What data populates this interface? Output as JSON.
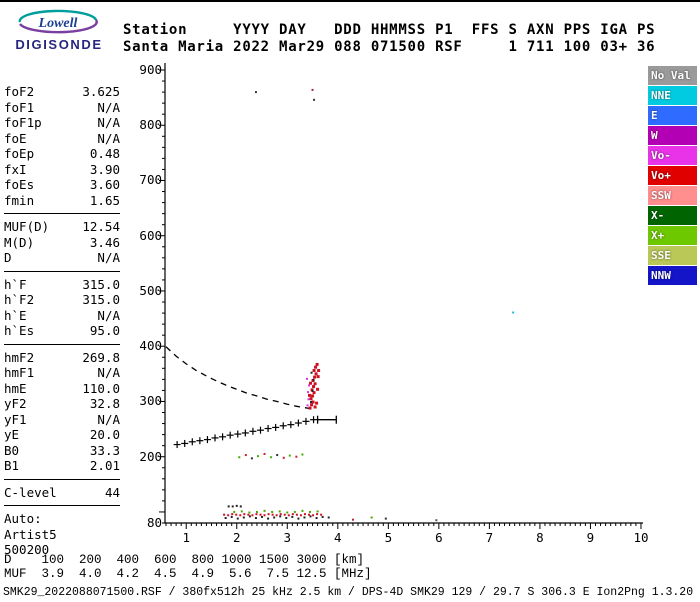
{
  "logo": {
    "name": "Lowell",
    "brand": "DIGISONDE"
  },
  "header": {
    "line1": "Station     YYYY DAY   DDD HHMMSS P1  FFS S AXN PPS IGA PS",
    "line2": "Santa Maria 2022 Mar29 088 071500 RSF     1 711 100 03+ 36"
  },
  "params": {
    "groups": [
      {
        "rows": [
          [
            "foF2",
            "3.625"
          ],
          [
            "foF1",
            "N/A"
          ],
          [
            "foF1p",
            "N/A"
          ],
          [
            "foE",
            "N/A"
          ],
          [
            "foEp",
            "0.48"
          ],
          [
            "fxI",
            "3.90"
          ],
          [
            "foEs",
            "3.60"
          ],
          [
            "fmin",
            "1.65"
          ]
        ]
      },
      {
        "rows": [
          [
            "MUF(D)",
            "12.54"
          ],
          [
            "M(D)",
            "3.46"
          ],
          [
            "D",
            "N/A"
          ]
        ]
      },
      {
        "rows": [
          [
            "h`F",
            "315.0"
          ],
          [
            "h`F2",
            "315.0"
          ],
          [
            "h`E",
            "N/A"
          ],
          [
            "h`Es",
            "95.0"
          ]
        ]
      },
      {
        "rows": [
          [
            "hmF2",
            "269.8"
          ],
          [
            "hmF1",
            "N/A"
          ],
          [
            "hmE",
            "110.0"
          ],
          [
            "yF2",
            "32.8"
          ],
          [
            "yF1",
            "N/A"
          ],
          [
            "yE",
            "20.0"
          ],
          [
            "B0",
            "33.3"
          ],
          [
            "B1",
            "2.01"
          ]
        ]
      },
      {
        "rows": [
          [
            "C-level",
            "44"
          ]
        ]
      },
      {
        "rows": [
          [
            "Auto:",
            ""
          ],
          [
            "Artist5",
            ""
          ],
          [
            "500200",
            ""
          ]
        ]
      }
    ]
  },
  "legend": {
    "entries": [
      {
        "label": "No Val",
        "color": "#9A9A9A"
      },
      {
        "label": "NNE",
        "color": "#00CBE0"
      },
      {
        "label": "E",
        "color": "#2F6BFF"
      },
      {
        "label": "W",
        "color": "#B400B4"
      },
      {
        "label": "Vo-",
        "color": "#E833E8"
      },
      {
        "label": "Vo+",
        "color": "#E00000"
      },
      {
        "label": "SSW",
        "color": "#FF8E8E"
      },
      {
        "label": "X-",
        "color": "#006400"
      },
      {
        "label": "X+",
        "color": "#6EC800"
      },
      {
        "label": "SSE",
        "color": "#B9C857"
      },
      {
        "label": "NNW",
        "color": "#1414C8"
      }
    ]
  },
  "footer": {
    "d_line": "D    100  200  400  600  800 1000 1500 3000 [km]",
    "muf_line": "MUF  3.9  4.0  4.2  4.5  4.9  5.6  7.5 12.5 [MHz]",
    "status": "SMK29_2022088071500.RSF / 380fx512h 25 kHz 2.5 km / DPS-4D SMK29 129 / 29.7 S 306.3 E Ion2Png 1.3.20"
  },
  "chart_data": {
    "type": "scatter",
    "title": "Digisonde ionogram - Santa Maria 2022 Mar29 088 071500",
    "xlabel": "[MHz]",
    "ylabel": "[km]",
    "xlim": [
      0.58,
      10.04
    ],
    "ylim": [
      80,
      900
    ],
    "x_ticks": [
      1,
      2,
      3,
      4,
      5,
      6,
      7,
      8,
      9,
      10
    ],
    "y_ticks": [
      900,
      800,
      700,
      600,
      500,
      400,
      300,
      200,
      80
    ],
    "grid": false,
    "legend_position": "right",
    "series": [
      {
        "name": "noise-specks",
        "style": "dots",
        "color": "#333333",
        "points": [
          [
            2.38,
            860,
            "#333333"
          ],
          [
            3.5,
            864,
            "#AA2244"
          ],
          [
            3.53,
            846,
            "#333333"
          ],
          [
            7.47,
            461,
            "#22BBDD"
          ],
          [
            4.67,
            90,
            "#44AA00"
          ],
          [
            5.95,
            85,
            "#555555"
          ],
          [
            4.3,
            86,
            "#BB2233"
          ],
          [
            4.95,
            88,
            "#333333"
          ]
        ]
      },
      {
        "name": "muf-transmission-curve",
        "style": "dashed",
        "color": "#000000",
        "points": [
          [
            0.6,
            399
          ],
          [
            0.8,
            382
          ],
          [
            1.0,
            368
          ],
          [
            1.2,
            356
          ],
          [
            1.4,
            346
          ],
          [
            1.6,
            337
          ],
          [
            1.8,
            329
          ],
          [
            2.0,
            322
          ],
          [
            2.2,
            315
          ],
          [
            2.4,
            310
          ],
          [
            2.6,
            304
          ],
          [
            2.8,
            300
          ],
          [
            3.0,
            295
          ],
          [
            3.2,
            291
          ],
          [
            3.4,
            288
          ],
          [
            3.5,
            286
          ]
        ]
      },
      {
        "name": "es-second-reflection",
        "style": "dots",
        "color": "#44AA00",
        "points": [
          [
            2.05,
            199,
            "#44AA00"
          ],
          [
            2.18,
            203,
            "#CC2222"
          ],
          [
            2.3,
            197,
            "#333333"
          ],
          [
            2.42,
            201,
            "#44AA00"
          ],
          [
            2.55,
            205,
            "#CC2222"
          ],
          [
            2.68,
            199,
            "#44AA00"
          ],
          [
            2.8,
            203,
            "#333333"
          ],
          [
            2.93,
            198,
            "#CC2222"
          ],
          [
            3.05,
            202,
            "#44AA00"
          ],
          [
            3.18,
            200,
            "#CC2222"
          ],
          [
            3.3,
            204,
            "#44AA00"
          ]
        ]
      },
      {
        "name": "f-trace-omode-crosses",
        "style": "plus",
        "color": "#000000",
        "points": [
          [
            0.82,
            222
          ],
          [
            0.97,
            224
          ],
          [
            1.12,
            227
          ],
          [
            1.27,
            229
          ],
          [
            1.42,
            231
          ],
          [
            1.57,
            234
          ],
          [
            1.72,
            236
          ],
          [
            1.87,
            239
          ],
          [
            2.02,
            241
          ],
          [
            2.17,
            243
          ],
          [
            2.32,
            246
          ],
          [
            2.47,
            248
          ],
          [
            2.62,
            251
          ],
          [
            2.77,
            253
          ],
          [
            2.92,
            256
          ],
          [
            3.07,
            258
          ],
          [
            3.22,
            261
          ],
          [
            3.37,
            264
          ],
          [
            3.52,
            267
          ]
        ]
      },
      {
        "name": "f-trace-end-marker",
        "style": "hbar",
        "color": "#000000",
        "points": [
          [
            3.6,
            267
          ],
          [
            3.97,
            267
          ]
        ]
      },
      {
        "name": "spread-f-echo-red",
        "style": "squares",
        "color": "#CC1122",
        "size": 3,
        "points": [
          [
            3.45,
            288
          ],
          [
            3.48,
            294
          ],
          [
            3.51,
            299
          ],
          [
            3.47,
            305
          ],
          [
            3.5,
            310
          ],
          [
            3.53,
            316
          ],
          [
            3.49,
            321
          ],
          [
            3.52,
            327
          ],
          [
            3.55,
            332
          ],
          [
            3.51,
            338
          ],
          [
            3.54,
            344
          ],
          [
            3.57,
            350
          ],
          [
            3.53,
            356
          ],
          [
            3.56,
            362
          ],
          [
            3.59,
            367
          ],
          [
            3.58,
            297
          ],
          [
            3.44,
            311
          ],
          [
            3.6,
            322
          ],
          [
            3.46,
            333
          ],
          [
            3.61,
            345
          ],
          [
            3.62,
            356
          ],
          [
            3.55,
            290
          ]
        ]
      },
      {
        "name": "spread-f-echo-magenta",
        "style": "squares",
        "color": "#E030E0",
        "size": 2,
        "points": [
          [
            3.4,
            293
          ],
          [
            3.42,
            304
          ],
          [
            3.41,
            317
          ],
          [
            3.43,
            329
          ],
          [
            3.39,
            341
          ]
        ]
      },
      {
        "name": "spread-f-echo-dark",
        "style": "squares",
        "color": "#222222",
        "size": 2,
        "points": [
          [
            3.47,
            299
          ],
          [
            3.5,
            319
          ],
          [
            3.52,
            339
          ],
          [
            3.48,
            352
          ]
        ]
      },
      {
        "name": "es-trace-red",
        "style": "squares",
        "color": "#CC1122",
        "size": 2,
        "points": [
          [
            1.75,
            95
          ],
          [
            1.83,
            94
          ],
          [
            1.91,
            96
          ],
          [
            1.99,
            95
          ],
          [
            2.07,
            94
          ],
          [
            2.15,
            96
          ],
          [
            2.23,
            95
          ],
          [
            2.31,
            94
          ],
          [
            2.39,
            96
          ],
          [
            2.47,
            95
          ],
          [
            2.55,
            94
          ],
          [
            2.63,
            96
          ],
          [
            2.71,
            95
          ],
          [
            2.79,
            94
          ],
          [
            2.87,
            96
          ],
          [
            2.95,
            95
          ],
          [
            3.03,
            94
          ],
          [
            3.11,
            96
          ],
          [
            3.19,
            95
          ],
          [
            3.27,
            94
          ],
          [
            3.35,
            96
          ],
          [
            3.43,
            95
          ],
          [
            3.51,
            94
          ],
          [
            3.59,
            96
          ],
          [
            3.67,
            95
          ]
        ]
      },
      {
        "name": "es-trace-dark",
        "style": "squares",
        "color": "#222222",
        "size": 2,
        "points": [
          [
            1.78,
            89
          ],
          [
            1.9,
            91
          ],
          [
            2.02,
            88
          ],
          [
            2.14,
            90
          ],
          [
            2.26,
            92
          ],
          [
            2.38,
            89
          ],
          [
            2.5,
            91
          ],
          [
            2.62,
            88
          ],
          [
            2.74,
            90
          ],
          [
            2.86,
            92
          ],
          [
            2.98,
            89
          ],
          [
            3.1,
            91
          ],
          [
            3.22,
            88
          ],
          [
            3.34,
            90
          ],
          [
            3.46,
            92
          ],
          [
            3.58,
            89
          ],
          [
            3.7,
            91
          ],
          [
            3.82,
            90
          ],
          [
            1.84,
            110
          ],
          [
            1.92,
            110
          ],
          [
            2.0,
            111
          ],
          [
            2.08,
            110
          ]
        ]
      },
      {
        "name": "es-trace-green",
        "style": "squares",
        "color": "#44AA00",
        "size": 2,
        "points": [
          [
            1.95,
            100
          ],
          [
            2.1,
            101
          ],
          [
            2.25,
            99
          ],
          [
            2.4,
            100
          ],
          [
            2.55,
            102
          ],
          [
            2.7,
            100
          ],
          [
            2.85,
            101
          ],
          [
            3.0,
            99
          ],
          [
            3.15,
            100
          ],
          [
            3.3,
            102
          ],
          [
            3.45,
            100
          ],
          [
            3.6,
            101
          ]
        ]
      }
    ]
  }
}
